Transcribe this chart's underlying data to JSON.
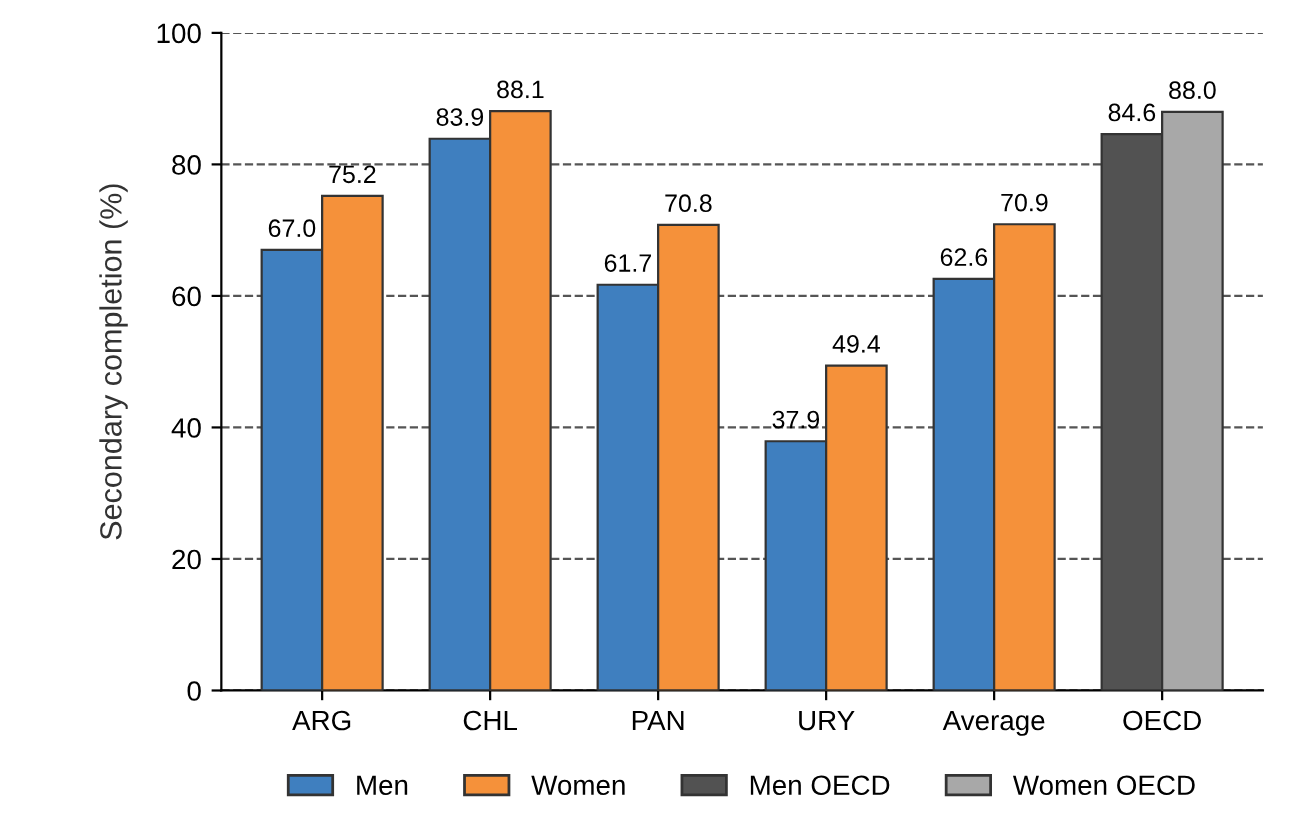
{
  "chart_data": {
    "type": "bar",
    "ylabel": "Secondary completion (%)",
    "categories": [
      "ARG",
      "CHL",
      "PAN",
      "URY",
      "Average",
      "OECD"
    ],
    "series": [
      {
        "name": "Men",
        "color": "#3f7fbf",
        "values": [
          67.0,
          83.9,
          61.7,
          37.9,
          62.6,
          null
        ],
        "value_labels": [
          "67.0",
          "83.9",
          "61.7",
          "37.9",
          "62.6",
          null
        ]
      },
      {
        "name": "Women",
        "color": "#f5913a",
        "values": [
          75.2,
          88.1,
          70.8,
          49.4,
          70.9,
          null
        ],
        "value_labels": [
          "75.2",
          "88.1",
          "70.8",
          "49.4",
          "70.9",
          null
        ]
      },
      {
        "name": "Men OECD",
        "color": "#525252",
        "values": [
          null,
          null,
          null,
          null,
          null,
          84.6
        ],
        "value_labels": [
          null,
          null,
          null,
          null,
          null,
          "84.6"
        ]
      },
      {
        "name": "Women OECD",
        "color": "#a8a8a8",
        "values": [
          null,
          null,
          null,
          null,
          null,
          88.0
        ],
        "value_labels": [
          null,
          null,
          null,
          null,
          null,
          "88.0"
        ]
      }
    ],
    "ylim": [
      0,
      100
    ],
    "yticks": [
      0,
      20,
      40,
      60,
      80,
      100
    ],
    "grid": "y",
    "legend": "bottom"
  }
}
